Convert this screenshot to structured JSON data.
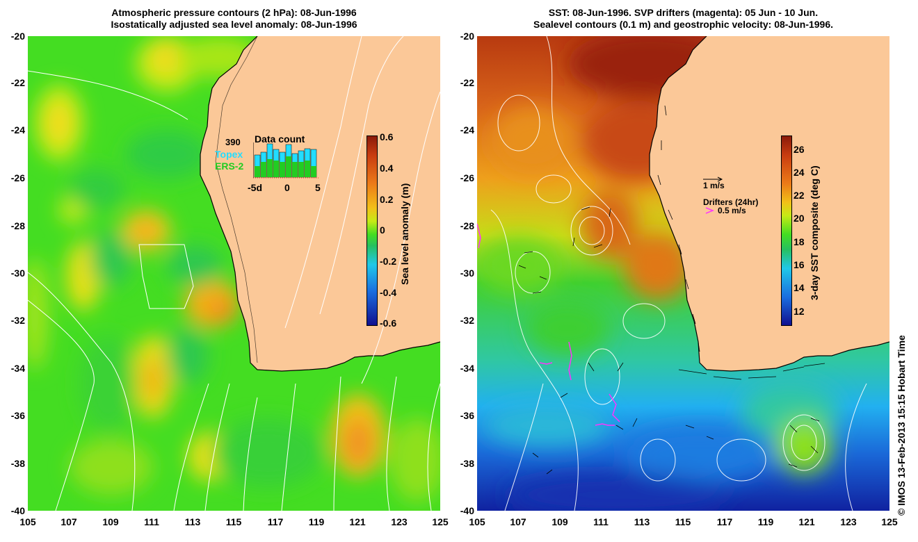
{
  "left_panel": {
    "title_line1": "Atmospheric pressure contours (2 hPa): 08-Jun-1996",
    "title_line2": "Isostatically adjusted sea level anomaly: 08-Jun-1996",
    "y_ticks": [
      "-20",
      "-22",
      "-24",
      "-26",
      "-28",
      "-30",
      "-32",
      "-34",
      "-36",
      "-38",
      "-40"
    ],
    "x_ticks": [
      "105",
      "107",
      "109",
      "111",
      "113",
      "115",
      "117",
      "119",
      "121",
      "123",
      "125"
    ],
    "colorbar_label": "Sea level anomaly (m)",
    "colorbar_ticks": [
      "0.6",
      "0.4",
      "0.2",
      "0",
      "-0.2",
      "-0.4",
      "-0.6"
    ],
    "data_count": {
      "title": "Data count",
      "total": "390",
      "topex_label": "Topex",
      "ers_label": "ERS-2",
      "x_ticks": [
        "-5d",
        "0",
        "5"
      ],
      "topex_color": "#22ddff",
      "ers_color": "#22cc22"
    }
  },
  "right_panel": {
    "title_line1": "SST: 08-Jun-1996. SVP drifters (magenta): 05 Jun - 10 Jun.",
    "title_line2": "Sealevel contours (0.1 m) and geostrophic velocity: 08-Jun-1996.",
    "y_ticks": [
      "-20",
      "-22",
      "-24",
      "-26",
      "-28",
      "-30",
      "-32",
      "-34",
      "-36",
      "-38",
      "-40"
    ],
    "x_ticks": [
      "105",
      "107",
      "109",
      "111",
      "113",
      "115",
      "117",
      "119",
      "121",
      "123",
      "125"
    ],
    "colorbar_label": "3-day SST composite (deg C)",
    "colorbar_ticks": [
      "26",
      "24",
      "22",
      "20",
      "18",
      "16",
      "14",
      "12"
    ],
    "velocity_scale_label": "1 m/s",
    "drifter_title": "Drifters (24hr)",
    "drifter_scale_label": "0.5 m/s",
    "drifter_color": "#ff33ff"
  },
  "credit": "© IMOS 13-Feb-2013 15:15 Hobart Time",
  "colors": {
    "land": "#fbc898",
    "ocean_green": "#44dd22",
    "coast": "#000000"
  }
}
